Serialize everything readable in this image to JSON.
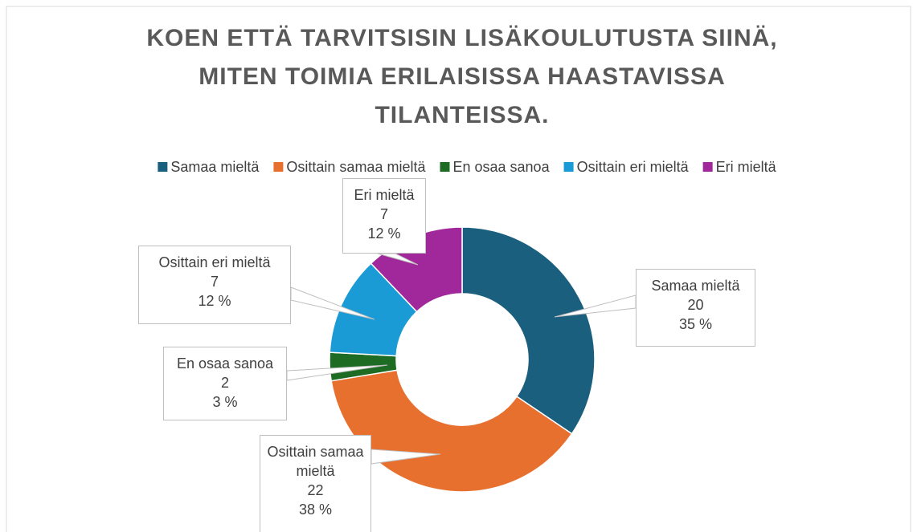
{
  "chart_data": {
    "type": "donut",
    "title": "KOEN ETTÄ TARVITSISIN LISÄKOULUTUSTA SIINÄ, MITEN TOIMIA ERILAISISSA HAASTAVISSA TILANTEISSA.",
    "categories": [
      "Samaa mieltä",
      "Osittain samaa mieltä",
      "En osaa sanoa",
      "Osittain eri mieltä",
      "Eri mieltä"
    ],
    "values": [
      20,
      22,
      2,
      7,
      7
    ],
    "percent_labels": [
      "35 %",
      "38 %",
      "3 %",
      "12 %",
      "12 %"
    ],
    "colors": [
      "#1b5f7f",
      "#e8702f",
      "#1e6b24",
      "#1a9bd5",
      "#a0289a"
    ],
    "legend": "top"
  }
}
